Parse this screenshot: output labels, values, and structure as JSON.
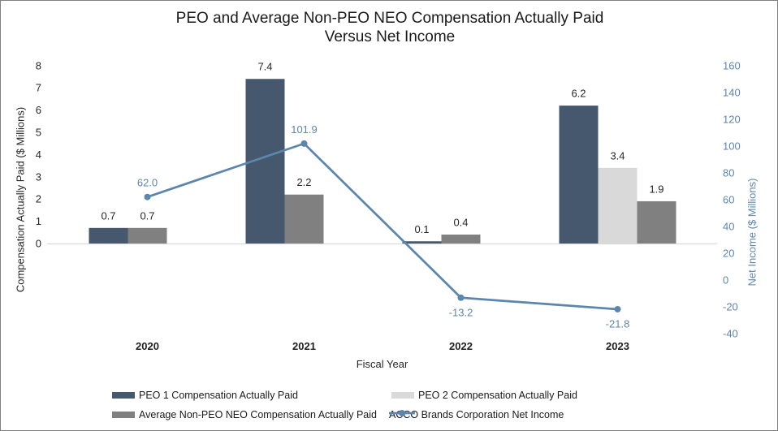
{
  "title": {
    "line1": "PEO and Average Non-PEO NEO Compensation Actually Paid",
    "line2": "Versus Net Income"
  },
  "axes": {
    "left": {
      "title": "Compensation Actually Paid ($ Millions)",
      "tick_labels": [
        "8",
        "7",
        "6",
        "5",
        "4",
        "3",
        "2",
        "1",
        "0"
      ],
      "tick_values": [
        8,
        7,
        6,
        5,
        4,
        3,
        2,
        1,
        0
      ],
      "text_color": "#262626"
    },
    "right": {
      "title": "Net Income ($ Millions)",
      "tick_labels": [
        "160",
        "140",
        "120",
        "100",
        "80",
        "60",
        "40",
        "20",
        "0",
        "-20",
        "-40"
      ],
      "tick_values": [
        160,
        140,
        120,
        100,
        80,
        60,
        40,
        20,
        0,
        -20,
        -40
      ],
      "text_color": "#5D86AD"
    },
    "x": {
      "title": "Fiscal Year",
      "categories": [
        "2020",
        "2021",
        "2022",
        "2023"
      ],
      "text_color": "#1f1f1f",
      "axis_line_color": "#d9d9d9"
    }
  },
  "chart_data": {
    "type": "bar+line combo, dual axis",
    "title": "PEO and Average Non-PEO NEO Compensation Actually Paid Versus Net Income",
    "categories": [
      "2020",
      "2021",
      "2022",
      "2023"
    ],
    "xlabel": "Fiscal Year",
    "left_ylabel": "Compensation Actually Paid ($ Millions)",
    "right_ylabel": "Net Income ($ Millions)",
    "left_ylim": [
      0,
      8
    ],
    "right_ylim": [
      -40,
      160
    ],
    "grid": false,
    "legend_position": "bottom",
    "series": [
      {
        "name": "PEO 1 Compensation Actually Paid",
        "type": "bar",
        "axis": "left",
        "color": "#45586E",
        "values": [
          0.7,
          7.4,
          0.1,
          6.2
        ]
      },
      {
        "name": "PEO 2 Compensation Actually Paid",
        "type": "bar",
        "axis": "left",
        "color": "#D9D9D9",
        "values": [
          null,
          null,
          null,
          3.4
        ]
      },
      {
        "name": "Average Non-PEO NEO Compensation Actually Paid",
        "type": "bar",
        "axis": "left",
        "color": "#808080",
        "values": [
          0.7,
          2.2,
          0.4,
          1.9
        ]
      },
      {
        "name": "ACCO Brands Corporation Net Income",
        "type": "line",
        "axis": "right",
        "color": "#5D86AD",
        "values": [
          62.0,
          101.9,
          -13.2,
          -21.8
        ]
      }
    ],
    "data_labels": {
      "bars": [
        [
          "0.7",
          "7.4",
          "0.1",
          "6.2"
        ],
        [
          "",
          "",
          "",
          "3.4"
        ],
        [
          "0.7",
          "2.2",
          "0.4",
          "1.9"
        ]
      ],
      "line": [
        "62.0",
        "101.9",
        "-13.2",
        "-21.8"
      ]
    }
  },
  "legend": {
    "items": [
      {
        "label": "PEO 1 Compensation Actually Paid",
        "icon": "bar",
        "color": "#45586E"
      },
      {
        "label": "PEO 2 Compensation Actually Paid",
        "icon": "bar",
        "color": "#D9D9D9"
      },
      {
        "label": "Average Non-PEO NEO Compensation Actually Paid",
        "icon": "bar",
        "color": "#808080"
      },
      {
        "label": "ACCO Brands Corporation Net Income",
        "icon": "line",
        "color": "#5D86AD"
      }
    ]
  }
}
